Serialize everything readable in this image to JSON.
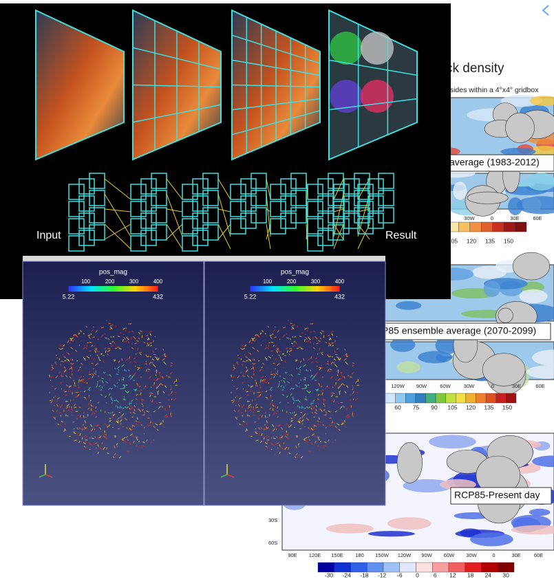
{
  "cnn": {
    "input": "Input",
    "result": "Result"
  },
  "viewer": {
    "panels": [
      {
        "title": "pos_mag",
        "ticks": [
          "100",
          "200",
          "300",
          "400"
        ],
        "min": "5.22",
        "max": "432"
      },
      {
        "title": "pos_mag",
        "ticks": [
          "100",
          "200",
          "300",
          "400"
        ],
        "min": "5.22",
        "max": "432"
      }
    ]
  },
  "maps": {
    "title": "ck density",
    "subtitle": "esides within a 4°x4° gridbox",
    "panels": [
      {
        "label": "average (1983-2012)",
        "lon_labels": [
          "30W",
          "0",
          "30E",
          "60E"
        ],
        "colorbar_labels": [
          "105",
          "120",
          "135",
          "150"
        ]
      },
      {
        "label": "P85 ensemble average (2070-2099)",
        "lon_labels": [
          "120W",
          "90W",
          "60W",
          "30W",
          "0",
          "30E",
          "60E"
        ],
        "colorbar_labels": [
          "60",
          "75",
          "90",
          "105",
          "120",
          "135",
          "150"
        ]
      },
      {
        "label": "RCP85-Present day",
        "lat_labels": [
          "30S",
          "60S"
        ],
        "lon_labels": [
          "90E",
          "120E",
          "150E",
          "180",
          "150W",
          "120W",
          "90W",
          "60W",
          "30W",
          "0",
          "30E",
          "60E"
        ],
        "colorbar_labels": [
          "-30",
          "-24",
          "-18",
          "-12",
          "-6",
          "0",
          "6",
          "12",
          "18",
          "24",
          "30"
        ]
      }
    ]
  }
}
